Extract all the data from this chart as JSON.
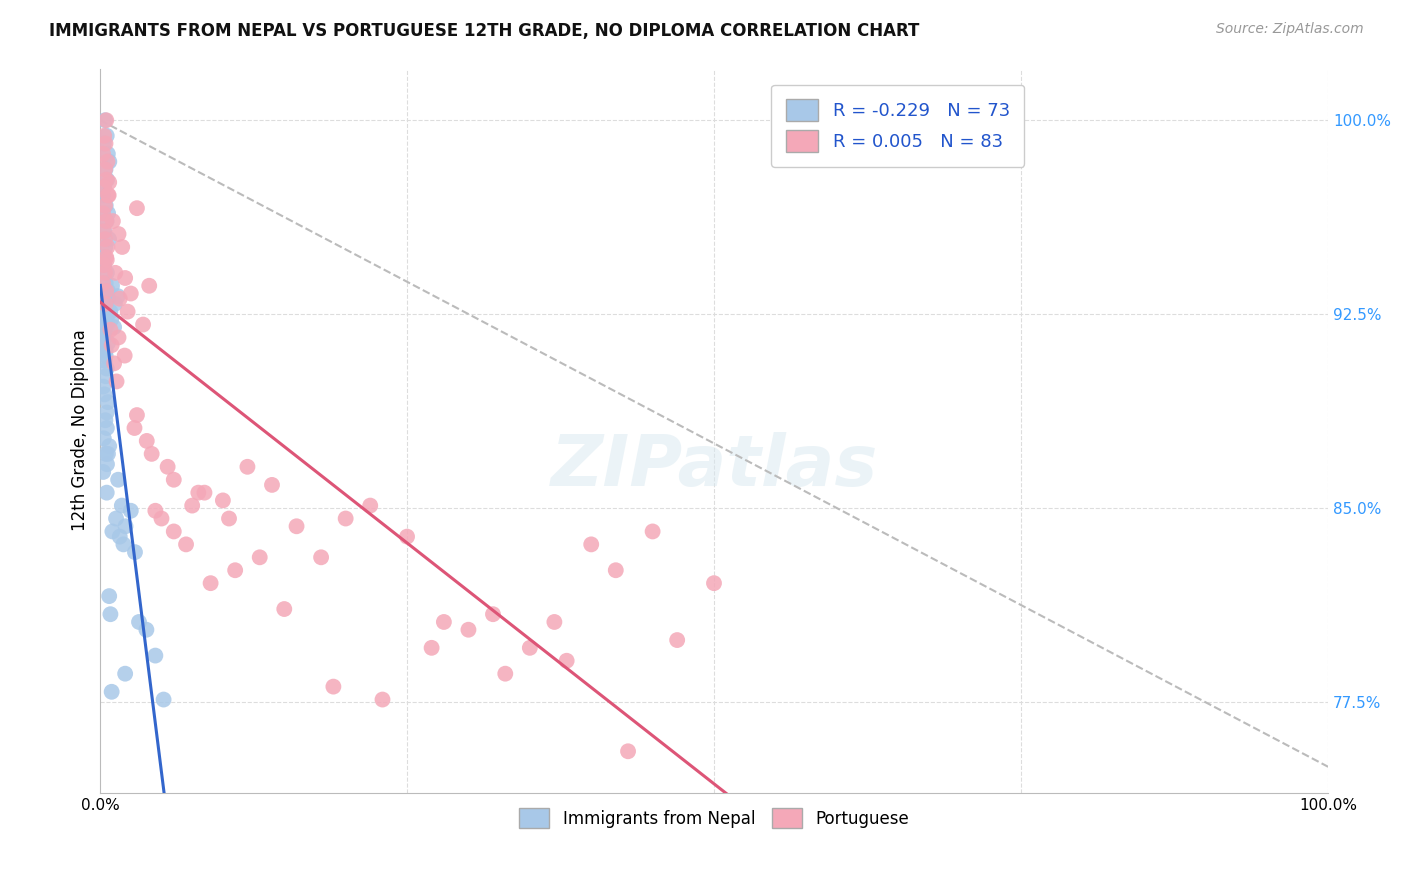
{
  "title": "IMMIGRANTS FROM NEPAL VS PORTUGUESE 12TH GRADE, NO DIPLOMA CORRELATION CHART",
  "source": "Source: ZipAtlas.com",
  "ylabel": "12th Grade, No Diploma",
  "legend_label1": "Immigrants from Nepal",
  "legend_label2": "Portuguese",
  "r1": "-0.229",
  "n1": "73",
  "r2": "0.005",
  "n2": "83",
  "color1": "#a8c8e8",
  "color2": "#f4a8b8",
  "line_color1": "#3366cc",
  "line_color2": "#dd5577",
  "ref_line_color": "#bbbbbb",
  "grid_color": "#dddddd",
  "background": "#ffffff",
  "xmin": 0.0,
  "xmax": 100.0,
  "ymin": 74.0,
  "ymax": 102.0,
  "yticks": [
    77.5,
    85.0,
    92.5,
    100.0
  ],
  "xtick_pos": [
    0.0,
    100.0
  ],
  "xtick_labels": [
    "0.0%",
    "100.0%"
  ],
  "ytick_color": "#3399ff",
  "nepal_x": [
    0.38,
    0.52,
    0.28,
    0.61,
    0.73,
    0.42,
    0.55,
    0.31,
    0.22,
    0.44,
    0.63,
    0.51,
    0.33,
    0.71,
    0.41,
    0.21,
    0.32,
    0.53,
    0.43,
    0.62,
    0.29,
    0.19,
    0.41,
    0.54,
    0.31,
    0.64,
    0.43,
    0.35,
    0.52,
    0.44,
    0.23,
    0.34,
    0.61,
    0.52,
    0.42,
    0.31,
    0.21,
    0.43,
    0.52,
    0.33,
    0.62,
    0.41,
    0.53,
    0.28,
    0.72,
    0.45,
    0.54,
    0.23,
    0.95,
    1.42,
    1.18,
    0.82,
    0.88,
    1.12,
    1.75,
    1.28,
    2.05,
    2.48,
    1.58,
    1.88,
    2.82,
    3.15,
    3.75,
    0.52,
    0.62,
    0.72,
    0.82,
    0.98,
    1.45,
    0.92,
    2.02,
    4.48,
    5.15
  ],
  "nepal_y": [
    100.0,
    99.4,
    99.1,
    98.7,
    98.4,
    98.1,
    97.7,
    97.4,
    97.1,
    96.7,
    96.4,
    96.1,
    95.7,
    95.4,
    95.1,
    94.7,
    94.4,
    94.1,
    93.7,
    93.4,
    93.1,
    92.7,
    92.4,
    92.1,
    91.7,
    91.4,
    91.1,
    90.7,
    90.4,
    90.1,
    89.7,
    89.4,
    89.1,
    88.7,
    92.1,
    91.6,
    91.2,
    90.9,
    92.3,
    91.9,
    93.1,
    88.4,
    88.1,
    87.7,
    87.4,
    87.1,
    86.7,
    86.4,
    93.6,
    93.2,
    92.9,
    92.6,
    92.3,
    92.0,
    85.1,
    84.6,
    84.3,
    84.9,
    83.9,
    83.6,
    83.3,
    80.6,
    80.3,
    85.6,
    87.1,
    81.6,
    80.9,
    84.1,
    86.1,
    77.9,
    78.6,
    79.3,
    77.6
  ],
  "portuguese_x": [
    0.48,
    0.31,
    0.42,
    0.22,
    0.58,
    0.38,
    0.48,
    0.28,
    0.68,
    0.38,
    0.22,
    0.48,
    0.28,
    0.38,
    0.58,
    0.48,
    0.28,
    0.38,
    0.22,
    0.48,
    1.02,
    1.48,
    1.22,
    1.78,
    2.02,
    2.48,
    2.98,
    3.48,
    3.98,
    4.48,
    4.98,
    5.98,
    6.98,
    7.98,
    8.98,
    9.98,
    11.98,
    13.98,
    15.98,
    17.98,
    19.98,
    21.98,
    24.98,
    27.98,
    29.98,
    31.98,
    34.98,
    37.98,
    39.98,
    41.98,
    44.98,
    46.98,
    49.98,
    0.82,
    0.92,
    1.12,
    1.32,
    1.58,
    2.22,
    2.78,
    3.78,
    5.48,
    7.48,
    10.48,
    12.98,
    0.62,
    0.72,
    0.52,
    0.42,
    1.48,
    1.98,
    2.98,
    4.18,
    5.98,
    8.48,
    10.98,
    14.98,
    18.98,
    22.98,
    26.98,
    32.98,
    36.98,
    42.98
  ],
  "portuguese_y": [
    100.0,
    99.4,
    99.1,
    98.7,
    98.4,
    98.1,
    97.7,
    97.4,
    97.1,
    96.7,
    96.4,
    96.1,
    95.7,
    95.4,
    95.1,
    94.7,
    94.4,
    94.1,
    93.7,
    93.4,
    96.1,
    95.6,
    94.1,
    95.1,
    93.9,
    93.3,
    96.6,
    92.1,
    93.6,
    84.9,
    84.6,
    84.1,
    83.6,
    85.6,
    82.1,
    85.3,
    86.6,
    85.9,
    84.3,
    83.1,
    84.6,
    85.1,
    83.9,
    80.6,
    80.3,
    80.9,
    79.6,
    79.1,
    83.6,
    82.6,
    84.1,
    79.9,
    82.1,
    91.9,
    91.3,
    90.6,
    89.9,
    93.1,
    92.6,
    88.1,
    87.6,
    86.6,
    85.1,
    84.6,
    83.1,
    97.1,
    97.6,
    94.6,
    92.9,
    91.6,
    90.9,
    88.6,
    87.1,
    86.1,
    85.6,
    82.6,
    81.1,
    78.1,
    77.6,
    79.6,
    78.6,
    80.6,
    75.6
  ]
}
